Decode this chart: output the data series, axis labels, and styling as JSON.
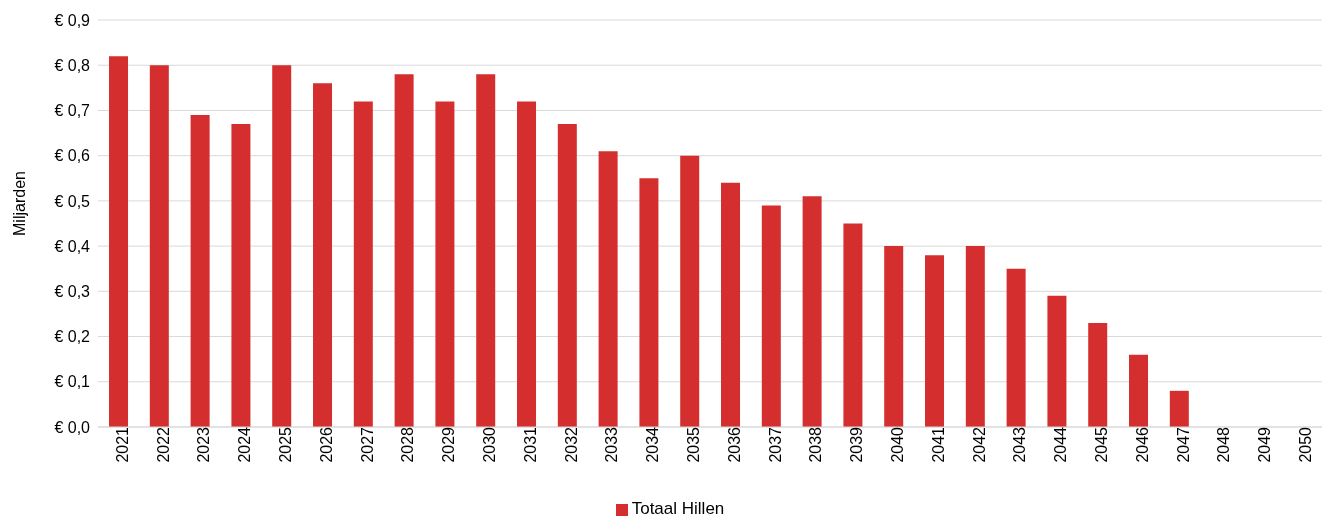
{
  "chart_data": {
    "type": "bar",
    "ylabel": "Miljarden",
    "categories": [
      "2021",
      "2022",
      "2023",
      "2024",
      "2025",
      "2026",
      "2027",
      "2028",
      "2029",
      "2030",
      "2031",
      "2032",
      "2033",
      "2034",
      "2035",
      "2036",
      "2037",
      "2038",
      "2039",
      "2040",
      "2041",
      "2042",
      "2043",
      "2044",
      "2045",
      "2046",
      "2047",
      "2048",
      "2049",
      "2050"
    ],
    "series": [
      {
        "name": "Totaal Hillen",
        "color": "#d42e2e",
        "values": [
          0.82,
          0.8,
          0.69,
          0.67,
          0.8,
          0.76,
          0.72,
          0.78,
          0.72,
          0.78,
          0.72,
          0.67,
          0.61,
          0.55,
          0.6,
          0.54,
          0.49,
          0.51,
          0.45,
          0.4,
          0.38,
          0.4,
          0.35,
          0.29,
          0.23,
          0.16,
          0.08,
          0,
          0,
          0
        ]
      }
    ],
    "ylim": [
      0,
      0.9
    ],
    "yticks": [
      {
        "value": 0,
        "label": "€ 0,0"
      },
      {
        "value": 0.1,
        "label": "€ 0,1"
      },
      {
        "value": 0.2,
        "label": "€ 0,2"
      },
      {
        "value": 0.3,
        "label": "€ 0,3"
      },
      {
        "value": 0.4,
        "label": "€ 0,4"
      },
      {
        "value": 0.5,
        "label": "€ 0,5"
      },
      {
        "value": 0.6,
        "label": "€ 0,6"
      },
      {
        "value": 0.7,
        "label": "€ 0,7"
      },
      {
        "value": 0.8,
        "label": "€ 0,8"
      },
      {
        "value": 0.9,
        "label": "€ 0,9"
      }
    ],
    "grid": "y",
    "legend": "bottom"
  }
}
